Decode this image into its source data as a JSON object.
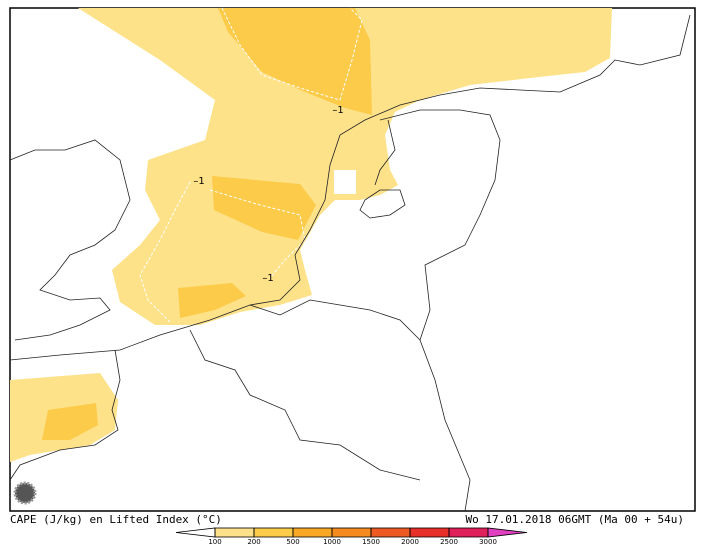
{
  "title": "CAPE (J/kg) en Lifted Index (°C)",
  "timestamp": "Wo 17.01.2018 06GMT (Ma 00 + 54u)",
  "contour_labels": [
    "–1",
    "–1",
    "–1"
  ],
  "colorbar": {
    "ticks": [
      100,
      200,
      500,
      1000,
      1500,
      2000,
      2500,
      3000
    ],
    "colors": [
      "#ffffff",
      "#fde08a",
      "#fccb4a",
      "#f9a825",
      "#f58a1f",
      "#ee5a24",
      "#e8302a",
      "#e0205a",
      "#e040c0"
    ]
  }
}
